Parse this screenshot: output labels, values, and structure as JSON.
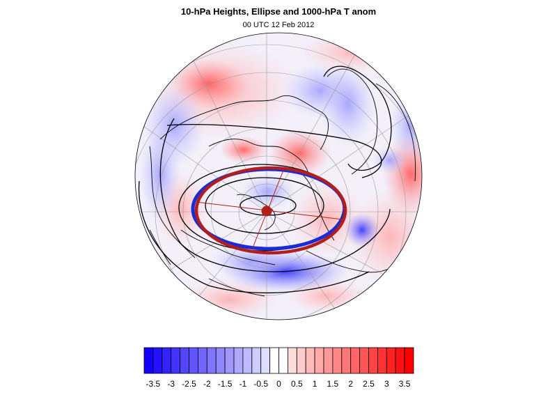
{
  "figure": {
    "title": "10-hPa Heights, Ellipse and 1000-hPa T anom",
    "subtitle": "00 UTC 12 Feb 2012"
  },
  "colors": {
    "negative_max": "#1400ff",
    "positive_max": "#ff0000",
    "ellipse_dark_red": "#b01e1e",
    "ellipse_blue": "#1a2bd8",
    "center_marker": "#b01e1e",
    "contour": "#000000",
    "coastline": "#000000",
    "gridline": "#9a9a9a"
  },
  "colorbar": {
    "levels": [
      -3.75,
      -3.5,
      -3.25,
      -3,
      -2.75,
      -2.5,
      -2.25,
      -2,
      -1.75,
      -1.5,
      -1.25,
      -1,
      -0.75,
      -0.5,
      -0.25,
      0,
      0.25,
      0.5,
      0.75,
      1,
      1.25,
      1.5,
      1.75,
      2,
      2.25,
      2.5,
      2.75,
      3,
      3.25,
      3.5,
      3.75
    ],
    "tick_labels": [
      "-3.5",
      "-3",
      "-2.5",
      "-2",
      "-1.5",
      "-1",
      "-0.5",
      "0",
      "0.5",
      "1",
      "1.5",
      "2",
      "2.5",
      "3",
      "3.5"
    ]
  },
  "map": {
    "projection": "polar stereographic (north pole)",
    "shading": "1000-hPa temperature anomaly",
    "contours": "10-hPa geopotential heights",
    "overlay": "vortex ellipse with center marker"
  }
}
